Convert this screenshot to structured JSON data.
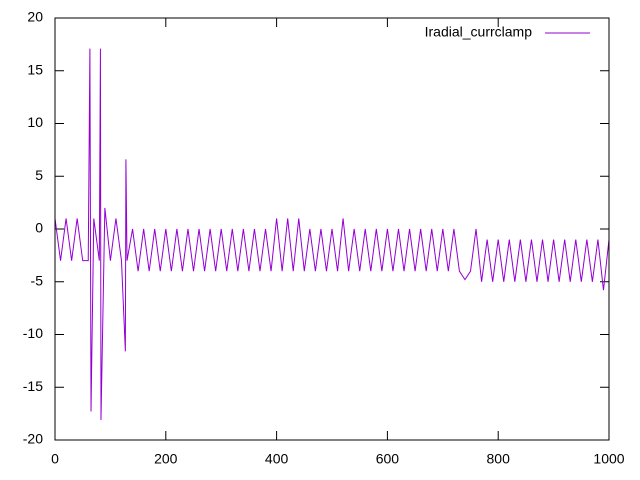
{
  "chart_data": {
    "type": "line",
    "x": [
      0,
      10,
      20,
      30,
      40,
      50,
      60,
      63,
      65,
      70,
      80,
      82,
      83,
      90,
      100,
      110,
      120,
      127,
      128,
      130,
      140,
      150,
      160,
      170,
      180,
      190,
      200,
      210,
      220,
      230,
      240,
      250,
      260,
      270,
      280,
      290,
      300,
      310,
      320,
      330,
      340,
      350,
      360,
      370,
      380,
      390,
      400,
      410,
      420,
      430,
      440,
      450,
      460,
      470,
      480,
      490,
      500,
      510,
      520,
      530,
      540,
      550,
      560,
      570,
      580,
      590,
      600,
      610,
      620,
      630,
      640,
      650,
      660,
      670,
      680,
      690,
      700,
      710,
      720,
      730,
      740,
      750,
      760,
      770,
      780,
      790,
      800,
      810,
      820,
      830,
      840,
      850,
      860,
      870,
      880,
      890,
      900,
      910,
      920,
      930,
      940,
      950,
      960,
      970,
      980,
      990,
      1000
    ],
    "series": [
      {
        "name": "Iradial_currclamp",
        "color": "#9400d3",
        "values": [
          1,
          -3,
          1,
          -3,
          1,
          -3,
          -3,
          17.1,
          -17.3,
          1,
          -3,
          17.1,
          -18.1,
          2,
          -3,
          1,
          -3,
          -11.6,
          6.6,
          -3,
          0,
          -4,
          0,
          -4,
          0,
          -4,
          0,
          -4,
          0,
          -4,
          0,
          -4,
          0,
          -4,
          0,
          -4,
          0,
          -4,
          0,
          -4,
          0,
          -4,
          0,
          -4,
          0,
          -4,
          1,
          -4,
          1,
          -4,
          1,
          -4,
          0,
          -4,
          0,
          -4,
          0,
          -4,
          1,
          -4,
          0,
          -4,
          0,
          -4,
          0,
          -4,
          0,
          -4,
          0,
          -4,
          0,
          -4,
          0,
          -4,
          0,
          -4,
          0,
          -4,
          0,
          -4,
          -4.8,
          -4,
          0,
          -5,
          -1,
          -5,
          -1,
          -5,
          -1,
          -5,
          -1,
          -5,
          -1,
          -5,
          -1,
          -5,
          -1,
          -5,
          -1,
          -5,
          -1,
          -5,
          -1,
          -5,
          -1,
          -5.8,
          -1
        ]
      }
    ],
    "xlim": [
      0,
      1000
    ],
    "xticks": [
      0,
      200,
      400,
      600,
      800,
      1000
    ],
    "ylim": [
      -20,
      20
    ],
    "yticks": [
      -20,
      -15,
      -10,
      -5,
      0,
      5,
      10,
      15,
      20
    ],
    "legend": "top-right"
  }
}
